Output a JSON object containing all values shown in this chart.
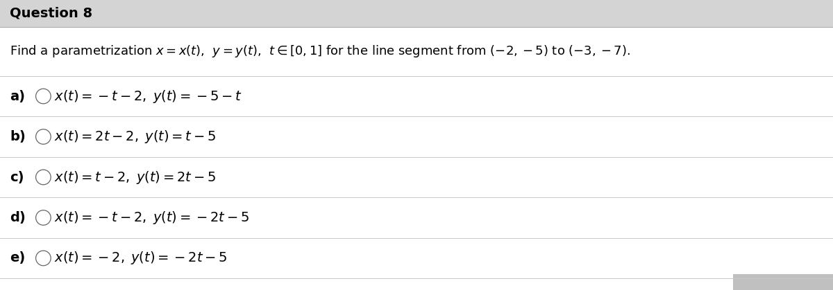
{
  "title": "Question 8",
  "title_bg_color": "#d4d4d4",
  "bg_color": "#ffffff",
  "question_text": "Find a parametrization $x = x(t)$,  $y = y(t)$,  $t \\in [0, 1]$ for the line segment from $(-2, -5)$ to $(-3, -7)$.",
  "options": [
    {
      "label": "a)",
      "formula": "$x(t) = -t - 2, \\; y(t) = -5 - t$"
    },
    {
      "label": "b)",
      "formula": "$x(t) = 2t - 2, \\; y(t) = t - 5$"
    },
    {
      "label": "c)",
      "formula": "$x(t) = t - 2, \\; y(t) = 2t - 5$"
    },
    {
      "label": "d)",
      "formula": "$x(t) = -t - 2, \\; y(t) = -2t - 5$"
    },
    {
      "label": "e)",
      "formula": "$x(t) = -2, \\; y(t) = -2t - 5$"
    }
  ],
  "separator_color": "#c8c8c8",
  "text_color": "#000000",
  "title_fontsize": 14,
  "question_fontsize": 13,
  "option_label_fontsize": 14,
  "option_formula_fontsize": 14,
  "bottom_bar_color": "#c8c8c8"
}
